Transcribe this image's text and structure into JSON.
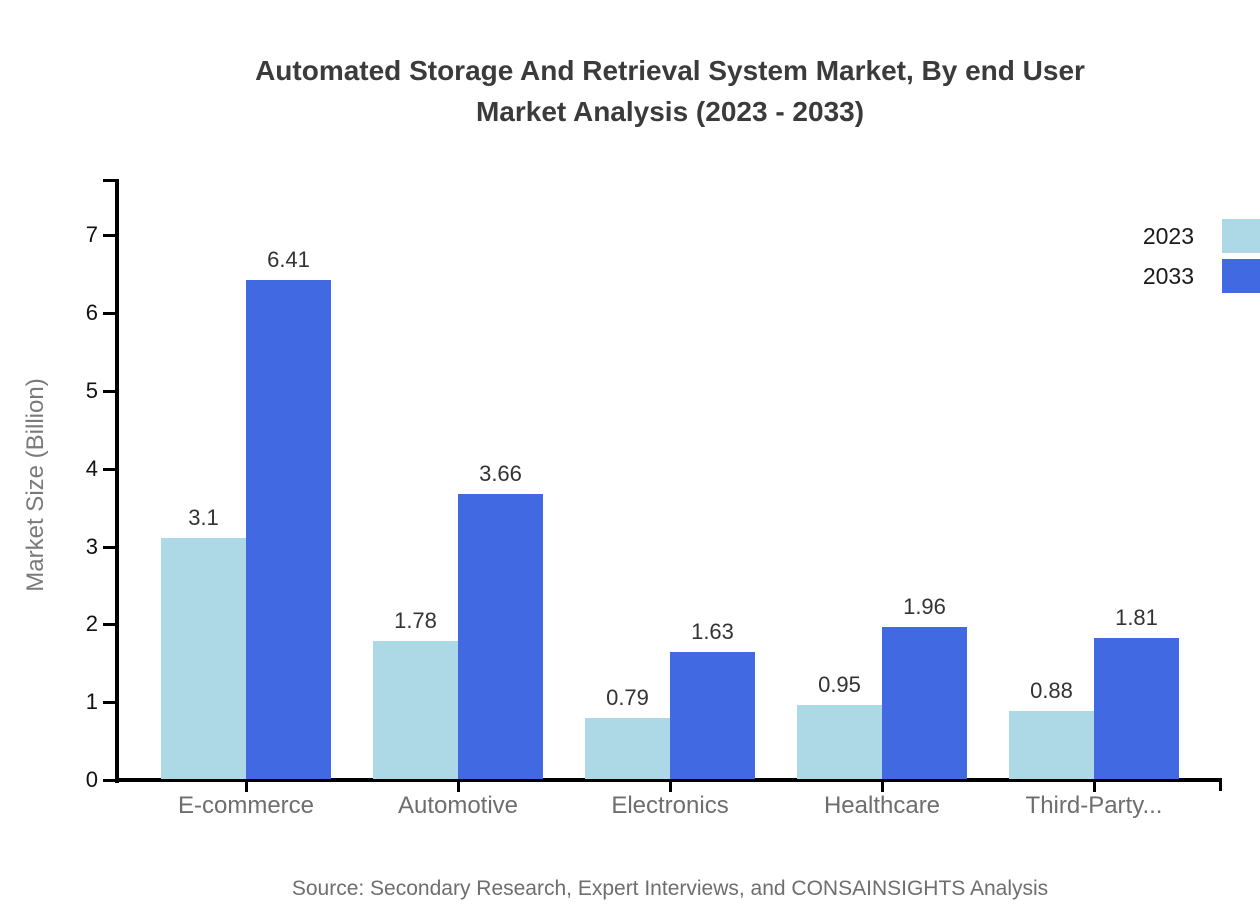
{
  "chart_data": {
    "type": "bar",
    "title": "Automated Storage And Retrieval System Market, By end User Market Analysis (2023 - 2033)",
    "title_lines": [
      "Automated Storage And Retrieval System Market, By end User",
      "Market Analysis (2023 - 2033)"
    ],
    "ylabel": "Market Size (Billion)",
    "xlabel": "",
    "categories": [
      "E-commerce",
      "Automotive",
      "Electronics",
      "Healthcare",
      "Third-Party..."
    ],
    "series": [
      {
        "name": "2023",
        "color": "#ADD8E6",
        "values": [
          3.1,
          1.78,
          0.79,
          0.95,
          0.88
        ],
        "labels": [
          "3.1",
          "1.78",
          "0.79",
          "0.95",
          "0.88"
        ]
      },
      {
        "name": "2033",
        "color": "#4169E1",
        "values": [
          6.41,
          3.66,
          1.63,
          1.96,
          1.81
        ],
        "labels": [
          "6.41",
          "3.66",
          "1.63",
          "1.96",
          "1.81"
        ]
      }
    ],
    "yticks": [
      0,
      1,
      2,
      3,
      4,
      5,
      6,
      7
    ],
    "ylim": [
      0,
      7.7
    ],
    "grid": false,
    "legend_position": "top-right",
    "axis_color": "#000000",
    "source": "Source: Secondary Research, Expert Interviews, and CONSAINSIGHTS Analysis"
  }
}
